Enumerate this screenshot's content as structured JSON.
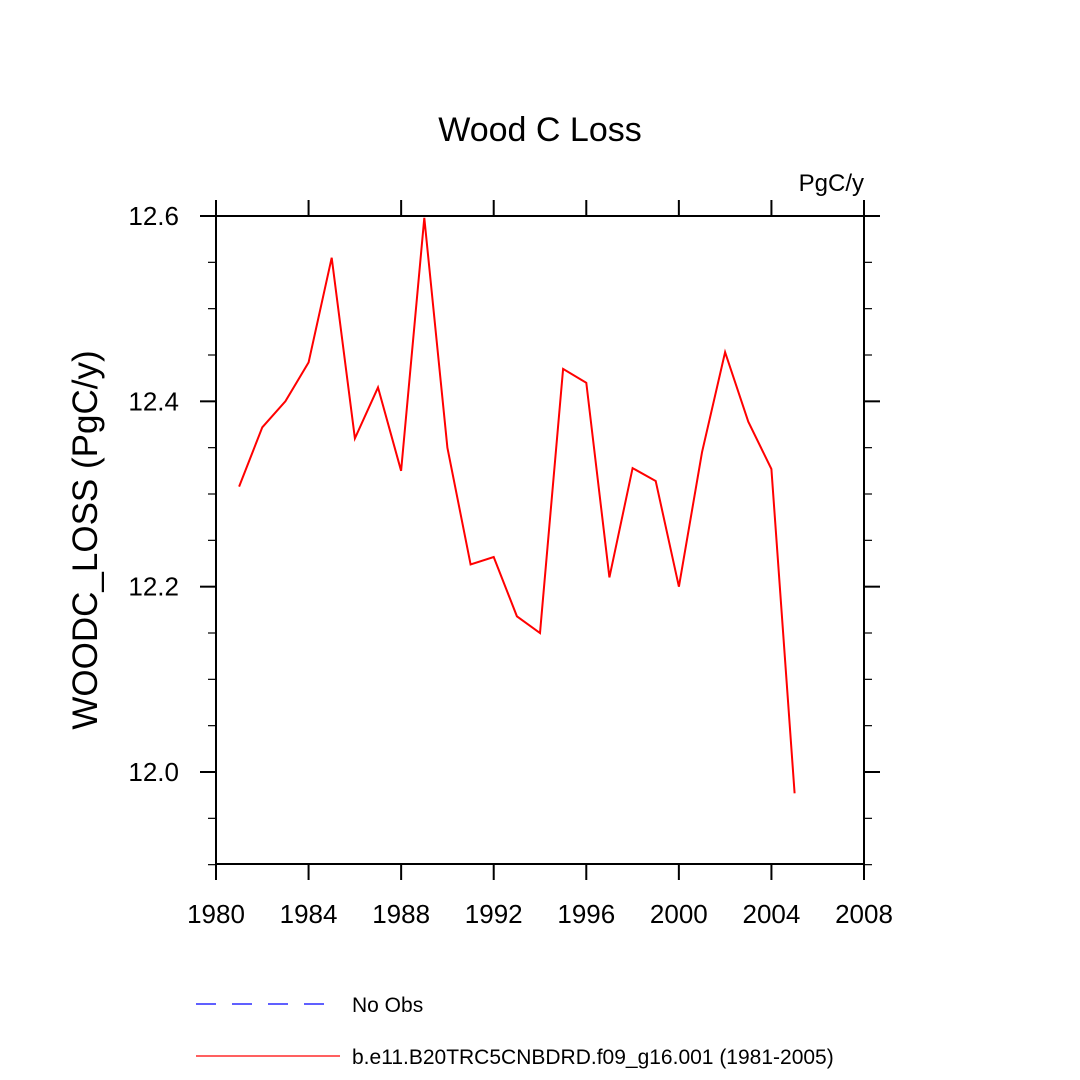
{
  "chart_data": {
    "type": "line",
    "title": "Wood C Loss",
    "units_label": "PgC/y",
    "ylabel": "WOODC_LOSS  (PgC/y)",
    "xlabel": "",
    "xlim": [
      1980,
      2008
    ],
    "ylim": [
      11.9,
      12.6
    ],
    "x_ticks": [
      1980,
      1984,
      1988,
      1992,
      1996,
      2000,
      2004,
      2008
    ],
    "y_ticks": [
      12.0,
      12.2,
      12.4,
      12.6
    ],
    "y_tick_labels": [
      "12.0",
      "12.2",
      "12.4",
      "12.6"
    ],
    "grid": false,
    "legend_position": "bottom",
    "series": [
      {
        "name": "b.e11.B20TRC5CNBDRD.f09_g16.001 (1981-2005)",
        "color": "#ff0000",
        "x": [
          1981,
          1982,
          1983,
          1984,
          1985,
          1986,
          1987,
          1988,
          1989,
          1990,
          1991,
          1992,
          1993,
          1994,
          1995,
          1996,
          1997,
          1998,
          1999,
          2000,
          2001,
          2002,
          2003,
          2004,
          2005
        ],
        "values": [
          12.308,
          12.372,
          12.4,
          12.442,
          12.555,
          12.36,
          12.415,
          12.325,
          12.598,
          12.35,
          12.224,
          12.232,
          12.168,
          12.15,
          12.435,
          12.42,
          12.21,
          12.328,
          12.314,
          12.2,
          12.345,
          12.453,
          12.378,
          12.327,
          11.977
        ]
      }
    ],
    "legend": [
      {
        "label": "No Obs",
        "color": "#0000ff",
        "style": "dashed"
      },
      {
        "label": "b.e11.B20TRC5CNBDRD.f09_g16.001 (1981-2005)",
        "color": "#ff0000",
        "style": "solid"
      }
    ]
  }
}
